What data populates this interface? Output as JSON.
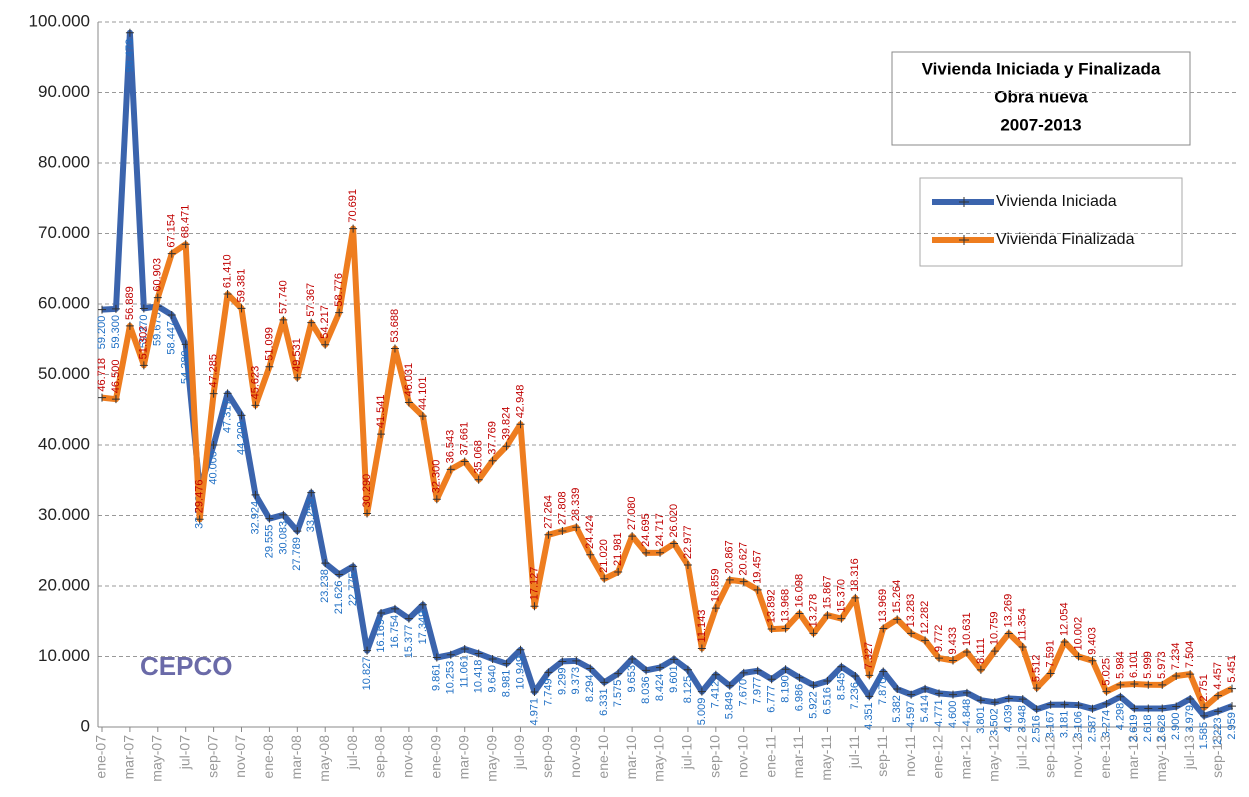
{
  "logo_text": "CEPCO",
  "chart_data": {
    "type": "line",
    "title": "Vivienda Iniciada y Finalizada",
    "subtitle": "Obra nueva",
    "period": "2007-2013",
    "categories": [
      "ene-07",
      null,
      "mar-07",
      null,
      "may-07",
      null,
      "jul-07",
      null,
      "sep-07",
      null,
      "nov-07",
      null,
      "ene-08",
      null,
      "mar-08",
      null,
      "may-08",
      null,
      "jul-08",
      null,
      "sep-08",
      null,
      "nov-08",
      null,
      "ene-09",
      null,
      "mar-09",
      null,
      "may-09",
      null,
      "jul-09",
      null,
      "sep-09",
      null,
      "nov-09",
      null,
      "ene-10",
      null,
      "mar-10",
      null,
      "may-10",
      null,
      "jul-10",
      null,
      "sep-10",
      null,
      "nov-10",
      null,
      "ene-11",
      null,
      "mar-11",
      null,
      "may-11",
      null,
      "jul-11",
      null,
      "sep-11",
      null,
      "nov-11",
      null,
      "ene-12",
      null,
      "mar-12",
      null,
      "may-12",
      null,
      "jul-12",
      null,
      "sep-12",
      null,
      "nov-12",
      null,
      "ene-13",
      null,
      "mar-13",
      null,
      "may-13",
      null,
      "jul-13",
      null,
      "sep-13",
      null
    ],
    "series": [
      {
        "name": "Vivienda Iniciada",
        "color": "#3b64ad",
        "label_color": "#1f6fc4",
        "values": [
          59200,
          59300,
          98478,
          59370,
          59675,
          58447,
          54280,
          33738,
          40000,
          47317,
          44209,
          32924,
          29555,
          30083,
          27789,
          33253,
          23238,
          21626,
          22775,
          10827,
          16169,
          16754,
          15377,
          17349,
          9861,
          10253,
          11061,
          10418,
          9640,
          8981,
          10949,
          4971,
          7749,
          9299,
          9373,
          8294,
          6331,
          7575,
          9653,
          8036,
          8424,
          9601,
          8125,
          5009,
          7412,
          5849,
          7670,
          7977,
          6777,
          8190,
          6986,
          5922,
          6516,
          8545,
          7236,
          4351,
          7870,
          5382,
          4597,
          5414,
          4771,
          4600,
          4848,
          3801,
          3502,
          4039,
          3948,
          2516,
          3167,
          3181,
          3106,
          2587,
          3274,
          4298,
          2619,
          2618,
          2628,
          2900,
          3979,
          1585,
          2223,
          2959
        ],
        "value_labels": [
          "59.200",
          "59.300",
          "98.478",
          "59.370",
          "59.675",
          "58.447",
          "54.280",
          "33.738",
          "40.000",
          "47.317",
          "44.209",
          "32.924",
          "29.555",
          "30.083",
          "27.789",
          "33.253",
          "23.238",
          "21.626",
          "22.775",
          "10.827",
          "16.169",
          "16.754",
          "15.377",
          "17.349",
          "9.861",
          "10.253",
          "11.061",
          "10.418",
          "9.640",
          "8.981",
          "10.949",
          "4.971",
          "7.749",
          "9.299",
          "9.373",
          "8.294",
          "6.331",
          "7.575",
          "9.653",
          "8.036",
          "8.424",
          "9.601",
          "8.125",
          "5.009",
          "7.412",
          "5.849",
          "7.670",
          "7.977",
          "6.777",
          "8.190",
          "6.986",
          "5.922",
          "6.516",
          "8.545",
          "7.236",
          "4.351",
          "7.870",
          "5.382",
          "4.597",
          "5.414",
          "4.771",
          "4.600",
          "4.848",
          "3.801",
          "3.502",
          "4.039",
          "3.948",
          "2.516",
          "3.167",
          "3.181",
          "3.106",
          "2.587",
          "3.274",
          "4.298",
          "2.619",
          "2.618",
          "2.628",
          "2.900",
          "3.979",
          "1.585",
          "2.223",
          "2.959"
        ]
      },
      {
        "name": "Vivienda Finalizada",
        "color": "#ee7d1f",
        "label_color": "#c00000",
        "values": [
          46718,
          46500,
          56889,
          51302,
          60903,
          67154,
          68471,
          29476,
          47285,
          61410,
          59381,
          45623,
          51099,
          57740,
          49531,
          57367,
          54217,
          58776,
          70691,
          30290,
          41541,
          53688,
          46031,
          44101,
          32300,
          36543,
          37661,
          35068,
          37769,
          39824,
          42948,
          17127,
          27264,
          27808,
          28339,
          24424,
          21020,
          21981,
          27080,
          24695,
          24717,
          26020,
          22977,
          11143,
          16859,
          20867,
          20627,
          19457,
          13892,
          13968,
          16098,
          13278,
          15867,
          15370,
          18316,
          7327,
          13969,
          15264,
          13283,
          12282,
          9772,
          9433,
          10631,
          8111,
          10759,
          13269,
          11354,
          5512,
          7591,
          12054,
          10002,
          9403,
          5025,
          5984,
          6101,
          5999,
          5973,
          7234,
          7504,
          2751,
          4457,
          5451
        ],
        "value_labels": [
          "46.718",
          "46.500",
          "56.889",
          "51.302",
          "60.903",
          "67.154",
          "68.471",
          "29.476",
          "47.285",
          "61.410",
          "59.381",
          "45.623",
          "51.099",
          "57.740",
          "49.531",
          "57.367",
          "54.217",
          "58.776",
          "70.691",
          "30.290",
          "41.541",
          "53.688",
          "46.031",
          "44.101",
          "32.300",
          "36.543",
          "37.661",
          "35.068",
          "37.769",
          "39.824",
          "42.948",
          "17.127",
          "27.264",
          "27.808",
          "28.339",
          "24.424",
          "21.020",
          "21.981",
          "27.080",
          "24.695",
          "24.717",
          "26.020",
          "22.977",
          "11.143",
          "16.859",
          "20.867",
          "20.627",
          "19.457",
          "13.892",
          "13.968",
          "16.098",
          "13.278",
          "15.867",
          "15.370",
          "18.316",
          "7.327",
          "13.969",
          "15.264",
          "13.283",
          "12.282",
          "9.772",
          "9.433",
          "10.631",
          "8.111",
          "10.759",
          "13.269",
          "11.354",
          "5.512",
          "7.591",
          "12.054",
          "10.002",
          "9.403",
          "5.025",
          "5.984",
          "6.101",
          "5.999",
          "5.973",
          "7.234",
          "7.504",
          "2.751",
          "4.457",
          "5.451"
        ]
      }
    ],
    "ylim": [
      0,
      100000
    ],
    "yticks": [
      {
        "value": 0,
        "label": "0"
      },
      {
        "value": 10000,
        "label": "10.000"
      },
      {
        "value": 20000,
        "label": "20.000"
      },
      {
        "value": 30000,
        "label": "30.000"
      },
      {
        "value": 40000,
        "label": "40.000"
      },
      {
        "value": 50000,
        "label": "50.000"
      },
      {
        "value": 60000,
        "label": "60.000"
      },
      {
        "value": 70000,
        "label": "70.000"
      },
      {
        "value": 80000,
        "label": "80.000"
      },
      {
        "value": 90000,
        "label": "90.000"
      },
      {
        "value": 100000,
        "label": "100.000"
      }
    ],
    "grid": true
  }
}
